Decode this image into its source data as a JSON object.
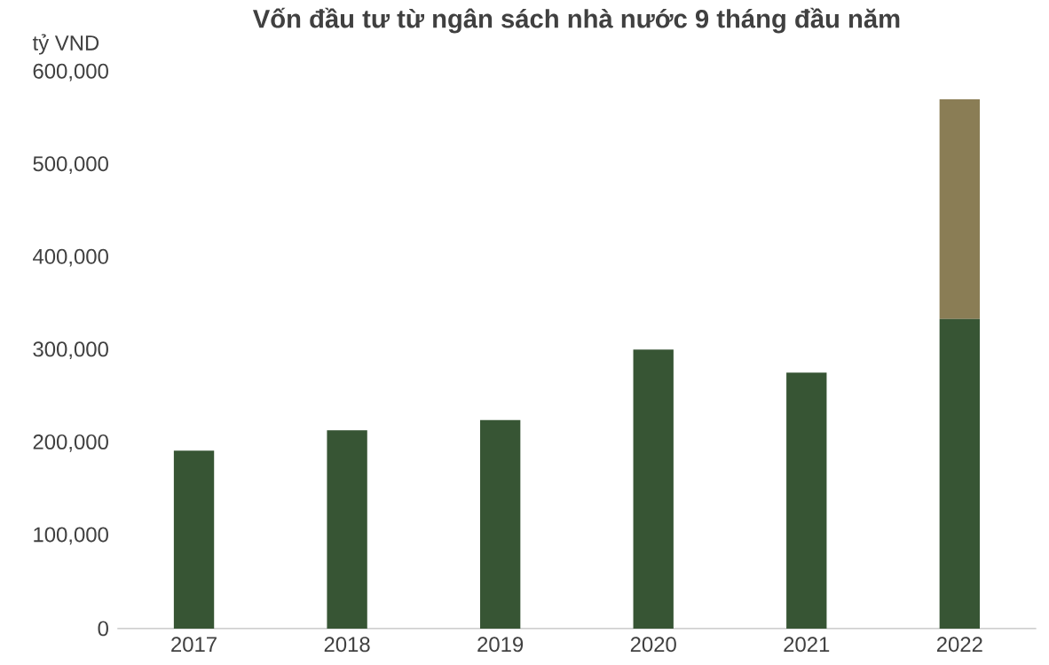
{
  "chart_data": {
    "type": "bar",
    "title": "Vốn đầu tư từ ngân sách nhà nước 9 tháng đầu năm",
    "ylabel": "tỷ VND",
    "categories": [
      "2017",
      "2018",
      "2019",
      "2020",
      "2021",
      "2022"
    ],
    "stacked": true,
    "series": [
      {
        "color": "#375534",
        "values": [
          192000,
          214000,
          225000,
          301000,
          276000,
          334000
        ]
      },
      {
        "color": "#8a7d55",
        "values": [
          null,
          null,
          null,
          null,
          null,
          237000
        ]
      }
    ],
    "ylim": [
      0,
      600000
    ],
    "yticks": [
      {
        "value": 0,
        "label": "0"
      },
      {
        "value": 100000,
        "label": "100,000"
      },
      {
        "value": 200000,
        "label": "200,000"
      },
      {
        "value": 300000,
        "label": "300,000"
      },
      {
        "value": 400000,
        "label": "400,000"
      },
      {
        "value": 500000,
        "label": "500,000"
      },
      {
        "value": 600000,
        "label": "600,000"
      }
    ],
    "grid": false
  }
}
